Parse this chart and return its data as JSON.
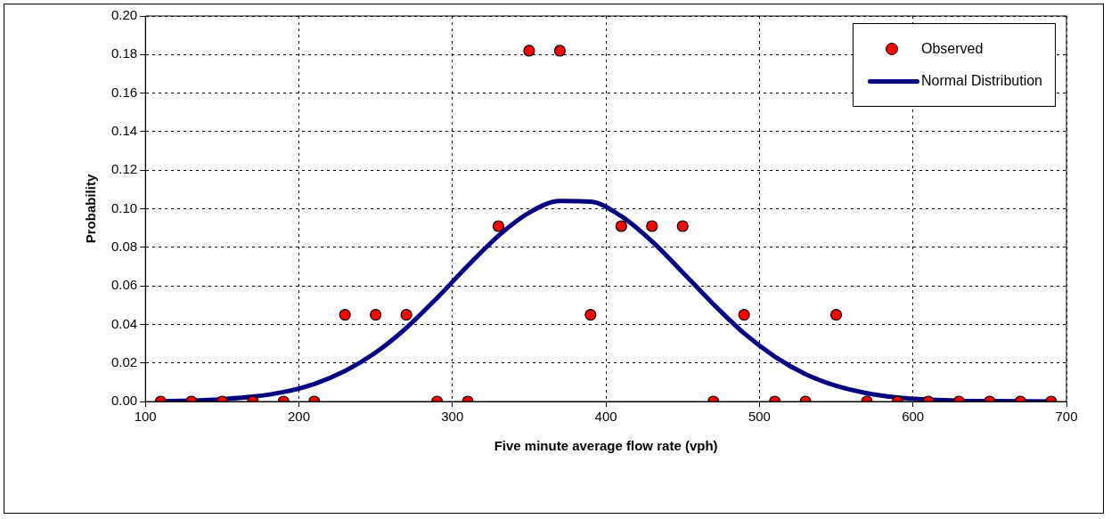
{
  "chart_data": {
    "type": "scatter",
    "xlabel": "Five minute average flow rate (vph)",
    "ylabel": "Probability",
    "xlim": [
      100,
      700
    ],
    "xticks": [
      100,
      200,
      300,
      400,
      500,
      600,
      700
    ],
    "ylim": [
      0,
      0.2
    ],
    "yticks": [
      {
        "value": 0,
        "label": "0.00"
      },
      {
        "value": 0.02,
        "label": "0.02"
      },
      {
        "value": 0.04,
        "label": "0.04"
      },
      {
        "value": 0.06,
        "label": "0.06"
      },
      {
        "value": 0.08,
        "label": "0.08"
      },
      {
        "value": 0.1,
        "label": "0.10"
      },
      {
        "value": 0.12,
        "label": "0.12"
      },
      {
        "value": 0.14,
        "label": "0.14"
      },
      {
        "value": 0.16,
        "label": "0.16"
      },
      {
        "value": 0.18,
        "label": "0.18"
      },
      {
        "value": 0.2,
        "label": "0.20"
      }
    ],
    "grid": true,
    "legend": "top right",
    "series": [
      {
        "name": "Observed",
        "marker": "circle",
        "color": "#ff0000",
        "x": [
          110,
          130,
          150,
          170,
          190,
          210,
          230,
          250,
          270,
          290,
          310,
          330,
          350,
          370,
          390,
          410,
          430,
          450,
          470,
          490,
          510,
          530,
          550,
          570,
          590,
          610,
          630,
          650,
          670,
          690
        ],
        "values": [
          0,
          0,
          0,
          0,
          0,
          0,
          0.045,
          0.045,
          0.045,
          0,
          0,
          0.091,
          0.182,
          0.182,
          0.045,
          0.091,
          0.091,
          0.091,
          0,
          0.045,
          0,
          0,
          0.045,
          0,
          0,
          0,
          0,
          0,
          0,
          0
        ]
      },
      {
        "name": "Normal Distribution",
        "type": "line",
        "marker": "none",
        "color": "#000080",
        "x": [
          110,
          130,
          150,
          170,
          190,
          210,
          230,
          250,
          270,
          290,
          310,
          330,
          350,
          370,
          390,
          410,
          430,
          450,
          470,
          490,
          510,
          530,
          550,
          570,
          590,
          610,
          630,
          650,
          670,
          690
        ],
        "values": [
          0.0002,
          0.0005,
          0.0012,
          0.0025,
          0.0049,
          0.0091,
          0.0158,
          0.0254,
          0.0382,
          0.0537,
          0.0704,
          0.086,
          0.098,
          0.104,
          0.1037,
          0.0961,
          0.0831,
          0.067,
          0.0505,
          0.0354,
          0.0233,
          0.0142,
          0.0081,
          0.0043,
          0.0021,
          0.001,
          0.0004,
          0.0002,
          0.0001,
          0
        ]
      }
    ]
  }
}
